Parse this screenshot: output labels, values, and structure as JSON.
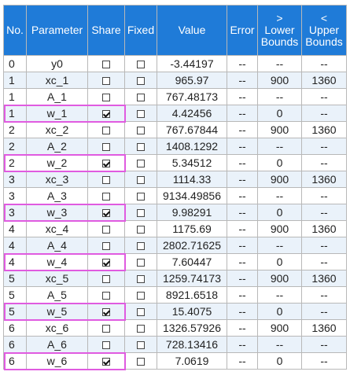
{
  "headers": {
    "no": "No.",
    "parameter": "Parameter",
    "share": "Share",
    "fixed": "Fixed",
    "value": "Value",
    "error": "Error",
    "lower_arrow": ">",
    "lower_line1": "Lower",
    "lower_line2": "Bounds",
    "upper_arrow": "<",
    "upper_line1": "Upper",
    "upper_line2": "Bounds"
  },
  "rows": [
    {
      "no": "0",
      "param": "y0",
      "share": false,
      "fixed": false,
      "value": "-3.44197",
      "error": "--",
      "lower": "--",
      "upper": "--"
    },
    {
      "no": "1",
      "param": "xc_1",
      "share": false,
      "fixed": false,
      "value": "965.97",
      "error": "--",
      "lower": "900",
      "upper": "1360"
    },
    {
      "no": "1",
      "param": "A_1",
      "share": false,
      "fixed": false,
      "value": "767.48173",
      "error": "--",
      "lower": "--",
      "upper": "--"
    },
    {
      "no": "1",
      "param": "w_1",
      "share": true,
      "fixed": false,
      "value": "4.42456",
      "error": "--",
      "lower": "0",
      "upper": "--"
    },
    {
      "no": "2",
      "param": "xc_2",
      "share": false,
      "fixed": false,
      "value": "767.67844",
      "error": "--",
      "lower": "900",
      "upper": "1360"
    },
    {
      "no": "2",
      "param": "A_2",
      "share": false,
      "fixed": false,
      "value": "1408.1292",
      "error": "--",
      "lower": "--",
      "upper": "--"
    },
    {
      "no": "2",
      "param": "w_2",
      "share": true,
      "fixed": false,
      "value": "5.34512",
      "error": "--",
      "lower": "0",
      "upper": "--"
    },
    {
      "no": "3",
      "param": "xc_3",
      "share": false,
      "fixed": false,
      "value": "1114.33",
      "error": "--",
      "lower": "900",
      "upper": "1360"
    },
    {
      "no": "3",
      "param": "A_3",
      "share": false,
      "fixed": false,
      "value": "9134.49856",
      "error": "--",
      "lower": "--",
      "upper": "--"
    },
    {
      "no": "3",
      "param": "w_3",
      "share": true,
      "fixed": false,
      "value": "9.98291",
      "error": "--",
      "lower": "0",
      "upper": "--"
    },
    {
      "no": "4",
      "param": "xc_4",
      "share": false,
      "fixed": false,
      "value": "1175.69",
      "error": "--",
      "lower": "900",
      "upper": "1360"
    },
    {
      "no": "4",
      "param": "A_4",
      "share": false,
      "fixed": false,
      "value": "2802.71625",
      "error": "--",
      "lower": "--",
      "upper": "--"
    },
    {
      "no": "4",
      "param": "w_4",
      "share": true,
      "fixed": false,
      "value": "7.60447",
      "error": "--",
      "lower": "0",
      "upper": "--"
    },
    {
      "no": "5",
      "param": "xc_5",
      "share": false,
      "fixed": false,
      "value": "1259.74173",
      "error": "--",
      "lower": "900",
      "upper": "1360"
    },
    {
      "no": "5",
      "param": "A_5",
      "share": false,
      "fixed": false,
      "value": "8921.6518",
      "error": "--",
      "lower": "--",
      "upper": "--"
    },
    {
      "no": "5",
      "param": "w_5",
      "share": true,
      "fixed": false,
      "value": "15.4075",
      "error": "--",
      "lower": "0",
      "upper": "--"
    },
    {
      "no": "6",
      "param": "xc_6",
      "share": false,
      "fixed": false,
      "value": "1326.57926",
      "error": "--",
      "lower": "900",
      "upper": "1360"
    },
    {
      "no": "6",
      "param": "A_6",
      "share": false,
      "fixed": false,
      "value": "728.13416",
      "error": "--",
      "lower": "--",
      "upper": "--"
    },
    {
      "no": "6",
      "param": "w_6",
      "share": true,
      "fixed": false,
      "value": "7.0619",
      "error": "--",
      "lower": "0",
      "upper": "--"
    }
  ],
  "colors": {
    "header_bg": "#1f7bd8",
    "header_text": "#ffffff",
    "stripe": "#eaf2fa",
    "highlight": "#e05be0",
    "grid": "#b8b8b8"
  }
}
